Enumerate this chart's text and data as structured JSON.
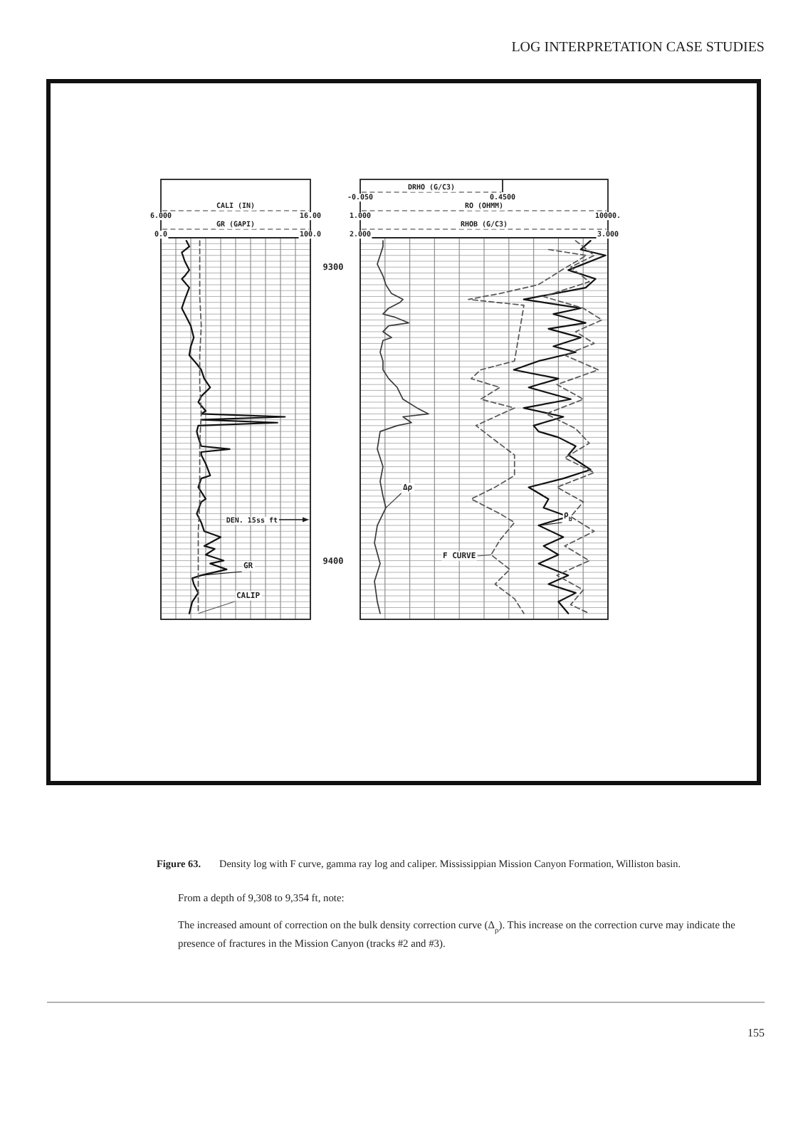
{
  "chart_data": [
    {
      "type": "line",
      "xlabel": "GR (GAPI)",
      "x2label": "CALI (IN)",
      "xlim": [
        0,
        100
      ],
      "xticks": [
        {
          "value": 0,
          "label": "0.0"
        },
        {
          "value": 10,
          "label": null
        },
        {
          "value": 20,
          "label": null
        },
        {
          "value": 30,
          "label": null
        },
        {
          "value": 40,
          "label": null
        },
        {
          "value": 50,
          "label": null
        },
        {
          "value": 60,
          "label": null
        },
        {
          "value": 70,
          "label": null
        },
        {
          "value": 80,
          "label": null
        },
        {
          "value": 90,
          "label": null
        },
        {
          "value": 100,
          "label": "100.0"
        }
      ],
      "x2lim": [
        6,
        16
      ],
      "x2ticks": [
        {
          "value": 6,
          "label": "6.000"
        },
        {
          "value": 16,
          "label": "16.00"
        }
      ],
      "ylim": [
        9420,
        9290
      ],
      "yticks": [
        {
          "value": 9290,
          "label": null
        },
        {
          "value": 9292,
          "label": null
        },
        {
          "value": 9294,
          "label": null
        },
        {
          "value": 9296,
          "label": null
        },
        {
          "value": 9298,
          "label": null
        },
        9300,
        {
          "value": 9302,
          "label": null
        },
        {
          "value": 9304,
          "label": null
        },
        {
          "value": 9306,
          "label": null
        },
        {
          "value": 9308,
          "label": null
        },
        {
          "value": 9310,
          "label": null
        },
        {
          "value": 9312,
          "label": null
        },
        {
          "value": 9314,
          "label": null
        },
        {
          "value": 9316,
          "label": null
        },
        {
          "value": 9318,
          "label": null
        },
        {
          "value": 9320,
          "label": null
        },
        {
          "value": 9322,
          "label": null
        },
        {
          "value": 9324,
          "label": null
        },
        {
          "value": 9326,
          "label": null
        },
        {
          "value": 9328,
          "label": null
        },
        {
          "value": 9330,
          "label": null
        },
        {
          "value": 9332,
          "label": null
        },
        {
          "value": 9334,
          "label": null
        },
        {
          "value": 9336,
          "label": null
        },
        {
          "value": 9338,
          "label": null
        },
        {
          "value": 9340,
          "label": null
        },
        {
          "value": 9342,
          "label": null
        },
        {
          "value": 9344,
          "label": null
        },
        {
          "value": 9346,
          "label": null
        },
        {
          "value": 9348,
          "label": null
        },
        {
          "value": 9350,
          "label": null
        },
        {
          "value": 9352,
          "label": null
        },
        {
          "value": 9354,
          "label": null
        },
        {
          "value": 9356,
          "label": null
        },
        {
          "value": 9358,
          "label": null
        },
        {
          "value": 9360,
          "label": null
        },
        {
          "value": 9362,
          "label": null
        },
        {
          "value": 9364,
          "label": null
        },
        {
          "value": 9366,
          "label": null
        },
        {
          "value": 9368,
          "label": null
        },
        {
          "value": 9370,
          "label": null
        },
        {
          "value": 9372,
          "label": null
        },
        {
          "value": 9374,
          "label": null
        },
        {
          "value": 9376,
          "label": null
        },
        {
          "value": 9378,
          "label": null
        },
        {
          "value": 9380,
          "label": null
        },
        {
          "value": 9382,
          "label": null
        },
        {
          "value": 9384,
          "label": null
        },
        {
          "value": 9386,
          "label": null
        },
        {
          "value": 9388,
          "label": null
        },
        {
          "value": 9390,
          "label": null
        },
        {
          "value": 9392,
          "label": null
        },
        {
          "value": 9394,
          "label": null
        },
        {
          "value": 9396,
          "label": null
        },
        {
          "value": 9398,
          "label": null
        },
        9400,
        {
          "value": 9402,
          "label": null
        },
        {
          "value": 9404,
          "label": null
        },
        {
          "value": 9406,
          "label": null
        },
        {
          "value": 9408,
          "label": null
        },
        {
          "value": 9410,
          "label": null
        },
        {
          "value": 9412,
          "label": null
        },
        {
          "value": 9414,
          "label": null
        },
        {
          "value": 9416,
          "label": null
        },
        {
          "value": 9418,
          "label": null
        },
        {
          "value": 9420,
          "label": null
        }
      ],
      "grid": true,
      "series": [
        {
          "name": "GR",
          "color": "#111111",
          "line_style": "solid",
          "x": [
            17,
            19,
            14,
            16,
            19,
            16,
            14,
            19,
            16,
            14,
            17,
            20,
            22,
            20,
            19,
            24,
            27,
            29,
            33,
            27,
            25,
            30,
            27,
            83,
            27,
            78,
            25,
            24,
            25,
            27,
            46,
            27,
            27,
            30,
            33,
            27,
            25,
            30,
            27,
            24,
            27,
            29,
            40,
            29,
            36,
            30,
            42,
            33,
            44,
            27,
            21,
            22,
            25,
            21,
            19
          ],
          "values": [
            9291,
            9293,
            9295,
            9298,
            9301,
            9303,
            9304,
            9307,
            9311,
            9314,
            9317,
            9320,
            9324,
            9327,
            9330,
            9333,
            9335,
            9338,
            9341,
            9344,
            9346,
            9349,
            9350,
            9351,
            9352,
            9353,
            9354,
            9356,
            9358,
            9361,
            9362,
            9363,
            9364,
            9367,
            9371,
            9372,
            9375,
            9379,
            9380,
            9384,
            9387,
            9390,
            9392,
            9395,
            9396,
            9398,
            9400,
            9401,
            9403,
            9405,
            9406,
            9408,
            9411,
            9414,
            9418
          ]
        },
        {
          "name": "CALIP",
          "color": "#555555",
          "axis": "x2",
          "line_style": "dashed",
          "x": [
            8.6,
            8.6,
            8.6,
            8.7,
            8.6,
            8.6,
            8.7,
            8.6,
            8.6,
            8.6,
            8.5,
            8.5,
            8.5,
            8.5
          ],
          "values": [
            9291,
            9300,
            9310,
            9320,
            9330,
            9340,
            9350,
            9360,
            9370,
            9380,
            9390,
            9400,
            9410,
            9418
          ]
        }
      ],
      "annotations": [
        "LOG INTERPRETATION CASE STUDIES",
        "Figure 63. Density log with F curve, gamma ray log and caliper. Mississippian Mission Canyon Formation, Williston basin.",
        "From a depth of 9,308 to 9,354 ft, note:",
        "The increased amount of correction on the bulk density correction curve (Δ$_{ρ}$). This increase on the correction curve may indicate the presence of fractures in the Mission Canyon (tracks #2 and #3).",
        "155",
        "DEN. 15ss ft"
      ]
    },
    {
      "type": "line",
      "xlabel": "RHOB (G/C3)",
      "x2label": "RO (OHMM)",
      "xlim": [
        2,
        3
      ],
      "xticks": [
        {
          "value": 2,
          "label": "2.000"
        },
        {
          "value": 2.1,
          "label": null
        },
        {
          "value": 2.2,
          "label": null
        },
        {
          "value": 2.3,
          "label": null
        },
        {
          "value": 2.4,
          "label": null
        },
        {
          "value": 2.5,
          "label": null
        },
        {
          "value": 2.6,
          "label": null
        },
        {
          "value": 2.7,
          "label": null
        },
        {
          "value": 2.8,
          "label": null
        },
        {
          "value": 2.9,
          "label": null
        },
        {
          "value": 3,
          "label": "3.000"
        }
      ],
      "x2lim": [
        1,
        10000
      ],
      "x2ticks": [
        {
          "value": 1,
          "label": "1.000"
        },
        {
          "value": 10000,
          "label": "10000."
        }
      ],
      "log": "x2",
      "tick_labels": "x",
      "ylim": [
        9420,
        9290
      ],
      "yticks": [
        {
          "value": 9290,
          "label": null
        },
        {
          "value": 9292,
          "label": null
        },
        {
          "value": 9294,
          "label": null
        },
        {
          "value": 9296,
          "label": null
        },
        {
          "value": 9298,
          "label": null
        },
        {
          "value": 9300,
          "label": null
        },
        {
          "value": 9302,
          "label": null
        },
        {
          "value": 9304,
          "label": null
        },
        {
          "value": 9306,
          "label": null
        },
        {
          "value": 9308,
          "label": null
        },
        {
          "value": 9310,
          "label": null
        },
        {
          "value": 9312,
          "label": null
        },
        {
          "value": 9314,
          "label": null
        },
        {
          "value": 9316,
          "label": null
        },
        {
          "value": 9318,
          "label": null
        },
        {
          "value": 9320,
          "label": null
        },
        {
          "value": 9322,
          "label": null
        },
        {
          "value": 9324,
          "label": null
        },
        {
          "value": 9326,
          "label": null
        },
        {
          "value": 9328,
          "label": null
        },
        {
          "value": 9330,
          "label": null
        },
        {
          "value": 9332,
          "label": null
        },
        {
          "value": 9334,
          "label": null
        },
        {
          "value": 9336,
          "label": null
        },
        {
          "value": 9338,
          "label": null
        },
        {
          "value": 9340,
          "label": null
        },
        {
          "value": 9342,
          "label": null
        },
        {
          "value": 9344,
          "label": null
        },
        {
          "value": 9346,
          "label": null
        },
        {
          "value": 9348,
          "label": null
        },
        {
          "value": 9350,
          "label": null
        },
        {
          "value": 9352,
          "label": null
        },
        {
          "value": 9354,
          "label": null
        },
        {
          "value": 9356,
          "label": null
        },
        {
          "value": 9358,
          "label": null
        },
        {
          "value": 9360,
          "label": null
        },
        {
          "value": 9362,
          "label": null
        },
        {
          "value": 9364,
          "label": null
        },
        {
          "value": 9366,
          "label": null
        },
        {
          "value": 9368,
          "label": null
        },
        {
          "value": 9370,
          "label": null
        },
        {
          "value": 9372,
          "label": null
        },
        {
          "value": 9374,
          "label": null
        },
        {
          "value": 9376,
          "label": null
        },
        {
          "value": 9378,
          "label": null
        },
        {
          "value": 9380,
          "label": null
        },
        {
          "value": 9382,
          "label": null
        },
        {
          "value": 9384,
          "label": null
        },
        {
          "value": 9386,
          "label": null
        },
        {
          "value": 9388,
          "label": null
        },
        {
          "value": 9390,
          "label": null
        },
        {
          "value": 9392,
          "label": null
        },
        {
          "value": 9394,
          "label": null
        },
        {
          "value": 9396,
          "label": null
        },
        {
          "value": 9398,
          "label": null
        },
        {
          "value": 9400,
          "label": null
        },
        {
          "value": 9402,
          "label": null
        },
        {
          "value": 9404,
          "label": null
        },
        {
          "value": 9406,
          "label": null
        },
        {
          "value": 9408,
          "label": null
        },
        {
          "value": 9410,
          "label": null
        },
        {
          "value": 9412,
          "label": null
        },
        {
          "value": 9414,
          "label": null
        },
        {
          "value": 9416,
          "label": null
        },
        {
          "value": 9418,
          "label": null
        },
        {
          "value": 9420,
          "label": null
        }
      ],
      "grid": true,
      "series": [
        {
          "name": "ρ$_{b}$",
          "color": "#111111",
          "line_style": "solid",
          "x": [
            2.93,
            2.89,
            2.99,
            2.84,
            2.95,
            2.91,
            2.66,
            2.89,
            2.78,
            2.91,
            2.76,
            2.89,
            2.78,
            2.87,
            2.72,
            2.62,
            2.8,
            2.68,
            2.85,
            2.66,
            2.82,
            2.7,
            2.72,
            2.8,
            2.87,
            2.84,
            2.93,
            2.82,
            2.68,
            2.76,
            2.74,
            2.84,
            2.72,
            2.82,
            2.74,
            2.8,
            2.72,
            2.84,
            2.76,
            2.87,
            2.8,
            2.84
          ],
          "values": [
            9291,
            9294,
            9296,
            9301,
            9304,
            9307,
            9311,
            9314,
            9316,
            9319,
            9321,
            9324,
            9327,
            9329,
            9332,
            9335,
            9338,
            9341,
            9345,
            9348,
            9351,
            9354,
            9356,
            9358,
            9361,
            9364,
            9369,
            9372,
            9375,
            9379,
            9382,
            9385,
            9388,
            9392,
            9395,
            9398,
            9401,
            9405,
            9408,
            9411,
            9414,
            9418
          ]
        },
        {
          "color": "#555555",
          "axis": "x2",
          "line_style": "dashed",
          "x": [
            3000,
            6000,
            2500,
            5000,
            900,
            4000,
            8000,
            3000,
            6000,
            2000,
            7000,
            1500,
            4000,
            1000,
            3000,
            5000,
            2000,
            6000,
            1500,
            4000,
            2500,
            6000,
            2000,
            5000,
            1500,
            4000,
            2500,
            5000
          ],
          "values": [
            9291,
            9296,
            9300,
            9305,
            9310,
            9314,
            9318,
            9322,
            9326,
            9330,
            9335,
            9340,
            9345,
            9350,
            9355,
            9360,
            9365,
            9370,
            9375,
            9380,
            9385,
            9390,
            9395,
            9400,
            9405,
            9410,
            9415,
            9418
          ]
        },
        {
          "name": "F CURVE",
          "color": "#555555",
          "axis": "x2",
          "line_style": "dashed",
          "x": [
            1100,
            4500,
            1800,
            750,
            180,
            56,
            440,
            310,
            88,
            62,
            180,
            88,
            310,
            150,
            74,
            150,
            310,
            310,
            150,
            62,
            180,
            310,
            180,
            130,
            260,
            150,
            310,
            440
          ],
          "values": [
            9294,
            9296,
            9301,
            9306,
            9309,
            9311,
            9313,
            9332,
            9335,
            9338,
            9341,
            9345,
            9348,
            9351,
            9354,
            9359,
            9364,
            9371,
            9375,
            9379,
            9384,
            9387,
            9393,
            9398,
            9403,
            9408,
            9413,
            9418
          ]
        }
      ]
    },
    {
      "type": "line",
      "xlabel": "DRHO (G/C3)",
      "xlim": [
        -0.05,
        0.45
      ],
      "xticks": [
        {
          "value": -0.05,
          "label": "-0.050"
        },
        {
          "value": 0.45,
          "label": "0.4500"
        }
      ],
      "ylim": [
        9420,
        9290
      ],
      "tick_labels": "x",
      "series": [
        {
          "name": "Δρ",
          "color": "#3a3a3a",
          "line_style": "solid",
          "x": [
            0.03,
            0.03,
            0.02,
            0.01,
            0.03,
            0.04,
            0.06,
            0.1,
            0.09,
            0.05,
            0.03,
            0.07,
            0.12,
            0.05,
            0.03,
            0.06,
            0.03,
            0.02,
            0.03,
            0.03,
            0.05,
            0.08,
            0.1,
            0.15,
            0.19,
            0.1,
            0.13,
            0.08,
            0.02,
            0.01,
            0.03,
            0.02,
            0.03,
            0.04,
            0.01,
            0,
            0.02,
            0,
            0.01,
            0.02
          ],
          "values": [
            9291,
            9293,
            9296,
            9299,
            9303,
            9306,
            9309,
            9311,
            9312,
            9314,
            9316,
            9317,
            9319,
            9320,
            9322,
            9324,
            9325,
            9329,
            9332,
            9335,
            9338,
            9341,
            9345,
            9348,
            9350,
            9351,
            9353,
            9354,
            9356,
            9362,
            9368,
            9373,
            9378,
            9382,
            9388,
            9394,
            9401,
            9407,
            9414,
            9418
          ]
        }
      ]
    }
  ]
}
